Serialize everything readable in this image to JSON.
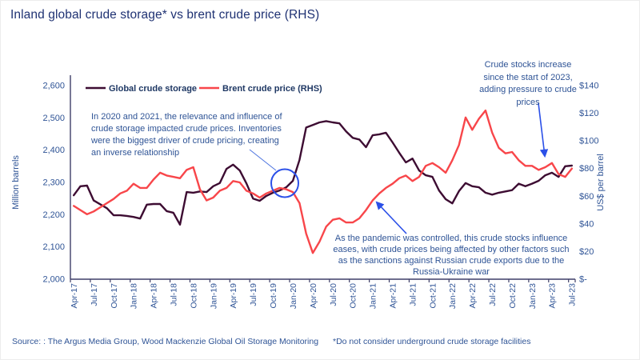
{
  "title": "Inland global crude storage* vs brent crude price (RHS)",
  "footer": {
    "source": "Source: : The Argus Media Group, Wood Mackenzie Global Oil Storage Monitoring",
    "footnote": "*Do not consider underground crude storage facilities"
  },
  "colors": {
    "storage_line": "#3D0C32",
    "brent_line": "#F8464A",
    "annotation_blue": "#2B50E8",
    "leader_blue": "#4d74e0",
    "title_navy": "#1F3273",
    "axis_text": "#2F5496",
    "legend_text": "#1F3864",
    "axis_line": "#3F3F68"
  },
  "chart_data": {
    "type": "line",
    "x_interval": "monthly",
    "x_start": "Apr-17",
    "x_end": "Jul-23",
    "x_tick_labels": [
      "Apr-17",
      "Jul-17",
      "Oct-17",
      "Jan-18",
      "Apr-18",
      "Jul-18",
      "Oct-18",
      "Jan-19",
      "Apr-19",
      "Jul-19",
      "Oct-19",
      "Jan-20",
      "Apr-20",
      "Jul-20",
      "Oct-20",
      "Jan-21",
      "Apr-21",
      "Jul-21",
      "Oct-21",
      "Jan-22",
      "Apr-22",
      "Jul-22",
      "Oct-22",
      "Jan-23",
      "Apr-23",
      "Jul-23"
    ],
    "left_axis": {
      "label": "Million barrels",
      "min": 2000,
      "max": 2600,
      "step": 100,
      "tick_labels": [
        "2,600",
        "2,500",
        "2,400",
        "2,300",
        "2,200",
        "2,100",
        "2,000"
      ]
    },
    "right_axis": {
      "label": "US$ per barrel",
      "min": 0,
      "max": 140,
      "step": 20,
      "tick_labels": [
        "$140",
        "$120",
        "$100",
        "$80",
        "$60",
        "$40",
        "$20",
        "$-"
      ]
    },
    "legend": [
      "Global crude storage",
      "Brent crude price (RHS)"
    ],
    "series": [
      {
        "name": "Global crude storage",
        "axis": "left",
        "values": [
          2260,
          2288,
          2290,
          2244,
          2232,
          2220,
          2198,
          2198,
          2196,
          2193,
          2188,
          2231,
          2233,
          2233,
          2211,
          2206,
          2169,
          2270,
          2268,
          2272,
          2270,
          2288,
          2298,
          2342,
          2355,
          2337,
          2297,
          2250,
          2243,
          2258,
          2268,
          2275,
          2285,
          2305,
          2370,
          2470,
          2478,
          2486,
          2490,
          2486,
          2483,
          2458,
          2438,
          2433,
          2409,
          2446,
          2449,
          2454,
          2424,
          2392,
          2362,
          2374,
          2337,
          2322,
          2317,
          2275,
          2248,
          2235,
          2273,
          2298,
          2288,
          2285,
          2268,
          2262,
          2268,
          2272,
          2276,
          2296,
          2288,
          2296,
          2305,
          2322,
          2330,
          2317,
          2350,
          2352
        ]
      },
      {
        "name": "Brent crude price (RHS)",
        "axis": "right",
        "values": [
          53,
          50,
          47,
          49,
          52,
          55,
          58,
          62,
          64,
          69,
          66,
          66,
          72,
          77,
          75,
          74,
          73,
          79,
          81,
          65,
          57,
          59,
          64,
          66,
          71,
          70,
          64,
          62,
          59,
          62,
          64,
          66,
          65,
          63,
          55,
          33,
          19,
          27,
          38,
          43,
          44,
          41,
          41,
          44,
          50,
          57,
          62,
          66,
          69,
          73,
          75,
          71,
          74,
          82,
          84,
          81,
          77,
          86,
          97,
          117,
          108,
          116,
          122,
          106,
          95,
          91,
          92,
          86,
          82,
          82,
          79,
          81,
          84,
          76,
          74,
          80
        ]
      }
    ],
    "annotations": [
      {
        "id": "inverse-relationship",
        "text": "In 2020 and 2021, the relevance and influence of crude storage impacted crude prices. Inventories were the biggest driver of crude pricing, creating an inverse relationship"
      },
      {
        "id": "stocks-increase-2023",
        "text": "Crude stocks increase since the start of 2023, adding pressure to crude prices"
      },
      {
        "id": "pandemic-controlled",
        "text": "As the pandemic was controlled, this crude stocks influence eases, with crude prices being affected by other factors such as the sanctions against Russian crude exports due to the Russia-Ukraine war"
      }
    ]
  }
}
